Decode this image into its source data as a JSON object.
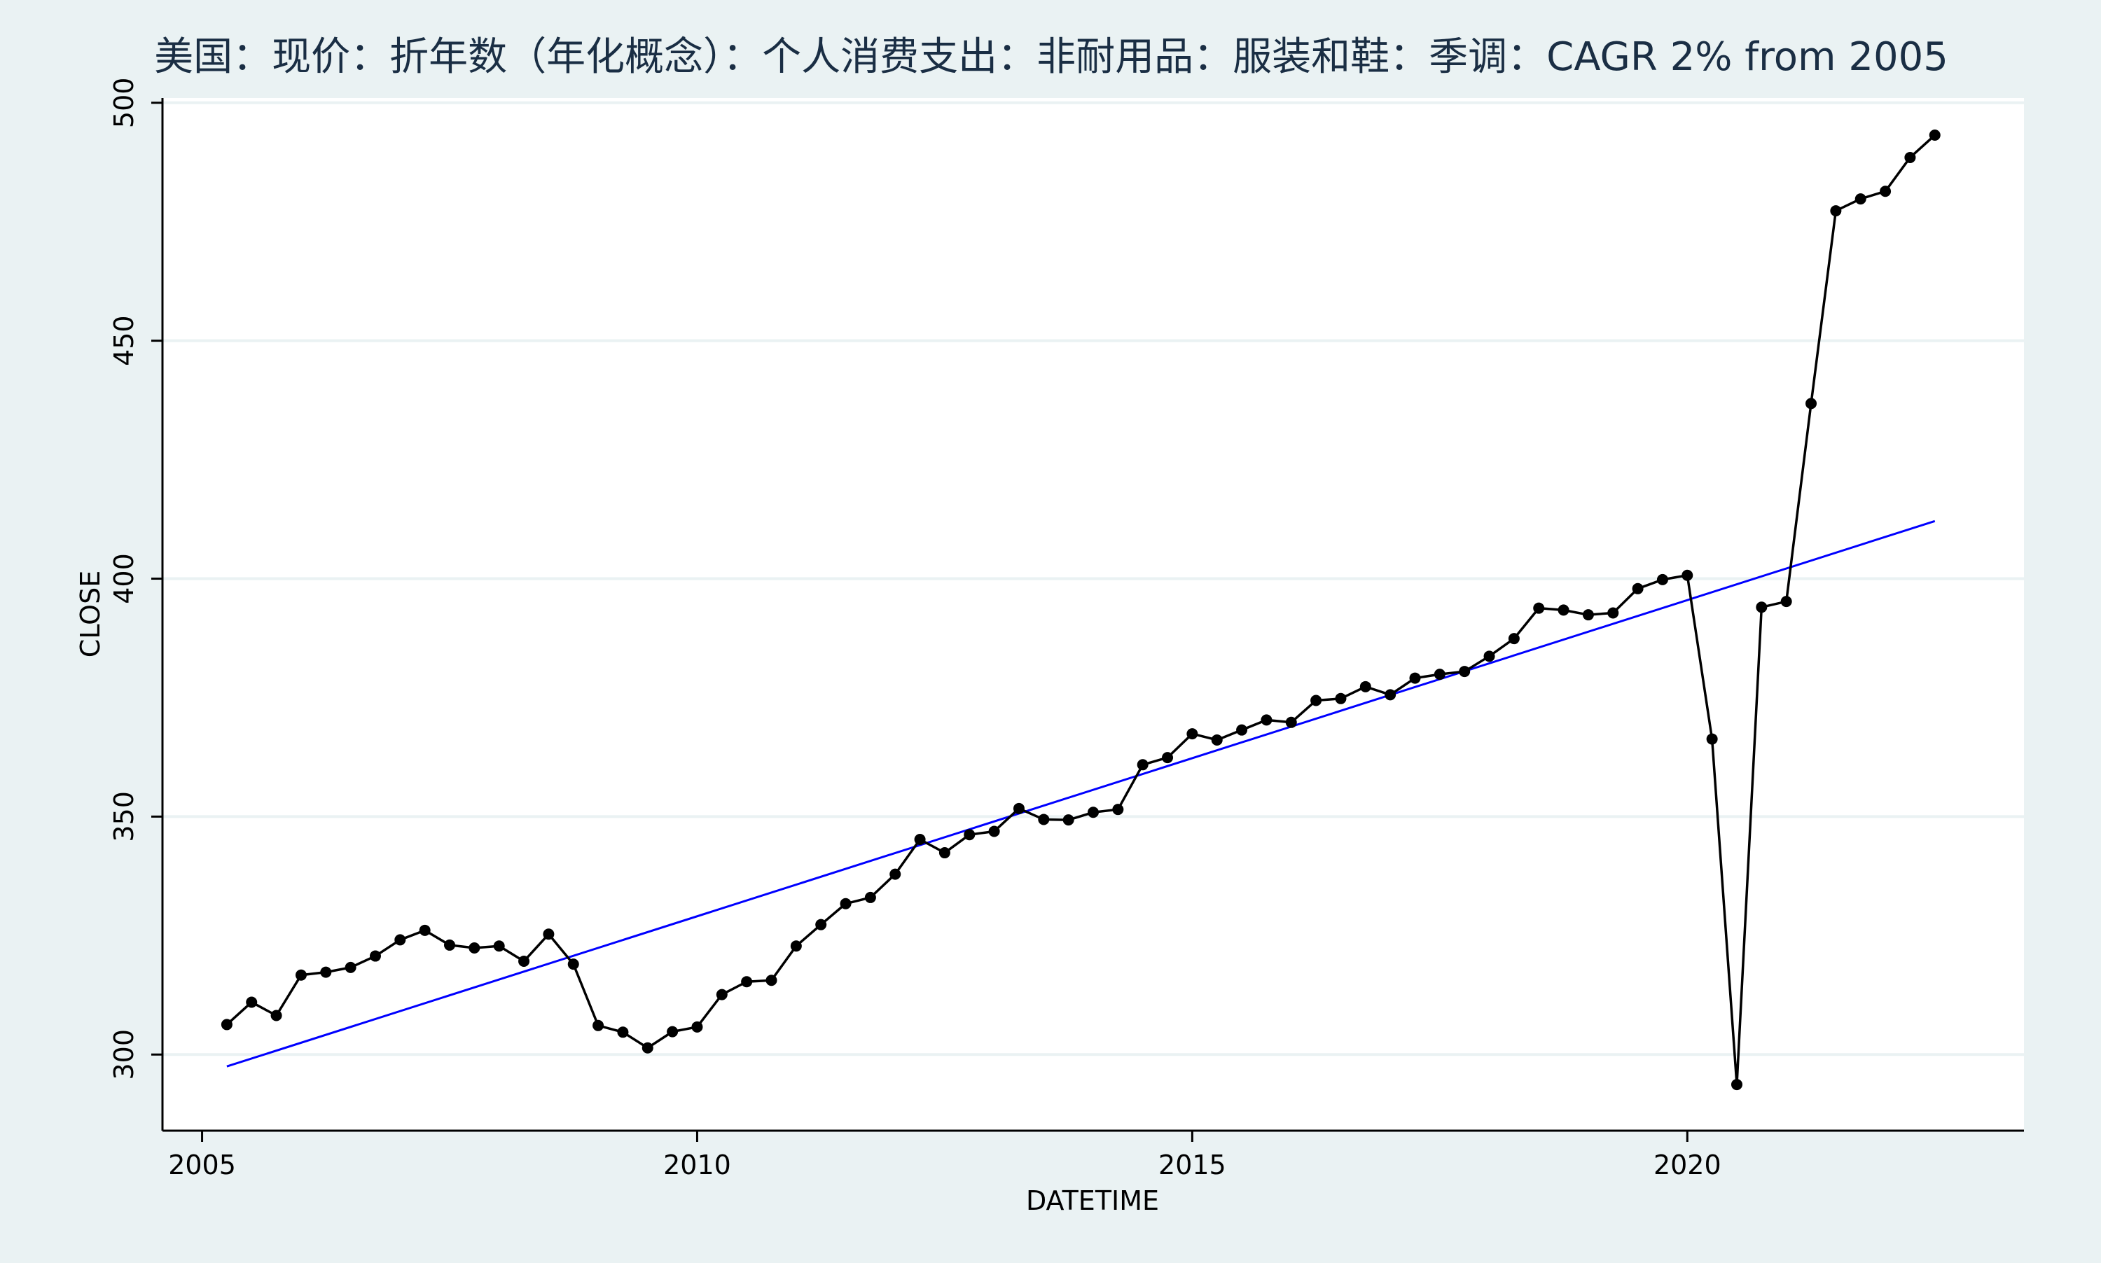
{
  "chart_data": {
    "type": "line",
    "title": "美国：现价：折年数（年化概念）：个人消费支出：非耐用品：服装和鞋：季调：CAGR 2% from 2005",
    "xlabel": "DATETIME",
    "ylabel": "CLOSE",
    "xlim": [
      2004.6,
      2023.4
    ],
    "ylim": [
      284,
      501
    ],
    "xticks": [
      2005,
      2010,
      2015,
      2020
    ],
    "yticks": [
      300,
      350,
      400,
      450,
      500
    ],
    "grid": "horizontal",
    "legend": "none",
    "colors": {
      "background": "#eaf2f3",
      "plot_background": "#ffffff",
      "grid": "#eaf2f3",
      "data_line": "#000000",
      "trend_line": "#0000ff"
    },
    "series": [
      {
        "values": [
          [
            2005.25,
            306.3
          ],
          [
            2005.5,
            311.0
          ],
          [
            2005.75,
            308.2
          ],
          [
            2006.0,
            316.7
          ],
          [
            2006.25,
            317.3
          ],
          [
            2006.5,
            318.3
          ],
          [
            2006.75,
            320.7
          ],
          [
            2007.0,
            324.1
          ],
          [
            2007.25,
            326.1
          ],
          [
            2007.5,
            323.0
          ],
          [
            2007.75,
            322.4
          ],
          [
            2008.0,
            322.8
          ],
          [
            2008.25,
            319.6
          ],
          [
            2008.5,
            325.3
          ],
          [
            2008.75,
            319.0
          ],
          [
            2009.0,
            306.1
          ],
          [
            2009.25,
            304.7
          ],
          [
            2009.5,
            301.4
          ],
          [
            2009.75,
            304.8
          ],
          [
            2010.0,
            305.8
          ],
          [
            2010.25,
            312.6
          ],
          [
            2010.5,
            315.3
          ],
          [
            2010.75,
            315.6
          ],
          [
            2011.0,
            322.8
          ],
          [
            2011.25,
            327.3
          ],
          [
            2011.5,
            331.7
          ],
          [
            2011.75,
            333.0
          ],
          [
            2012.0,
            337.9
          ],
          [
            2012.25,
            345.2
          ],
          [
            2012.5,
            342.4
          ],
          [
            2012.75,
            346.2
          ],
          [
            2013.0,
            346.9
          ],
          [
            2013.25,
            351.7
          ],
          [
            2013.5,
            349.4
          ],
          [
            2013.75,
            349.3
          ],
          [
            2014.0,
            350.9
          ],
          [
            2014.25,
            351.5
          ],
          [
            2014.5,
            360.9
          ],
          [
            2014.75,
            362.4
          ],
          [
            2015.0,
            367.4
          ],
          [
            2015.25,
            366.1
          ],
          [
            2015.5,
            368.2
          ],
          [
            2015.75,
            370.3
          ],
          [
            2016.0,
            369.8
          ],
          [
            2016.25,
            374.4
          ],
          [
            2016.5,
            374.8
          ],
          [
            2016.75,
            377.3
          ],
          [
            2017.0,
            375.6
          ],
          [
            2017.25,
            379.1
          ],
          [
            2017.5,
            379.9
          ],
          [
            2017.75,
            380.5
          ],
          [
            2018.0,
            383.7
          ],
          [
            2018.25,
            387.4
          ],
          [
            2018.5,
            393.8
          ],
          [
            2018.75,
            393.4
          ],
          [
            2019.0,
            392.4
          ],
          [
            2019.25,
            392.8
          ],
          [
            2019.5,
            397.9
          ],
          [
            2019.75,
            399.8
          ],
          [
            2020.0,
            400.7
          ],
          [
            2020.25,
            366.3
          ],
          [
            2020.5,
            293.7
          ],
          [
            2020.75,
            394.0
          ],
          [
            2021.0,
            395.2
          ],
          [
            2021.25,
            436.8
          ],
          [
            2021.5,
            477.3
          ],
          [
            2021.75,
            479.8
          ],
          [
            2022.0,
            481.4
          ],
          [
            2022.25,
            488.5
          ],
          [
            2022.5,
            493.2
          ]
        ]
      },
      {
        "values": [
          [
            2005.25,
            297.5
          ],
          [
            2022.5,
            412.1
          ]
        ]
      }
    ]
  }
}
